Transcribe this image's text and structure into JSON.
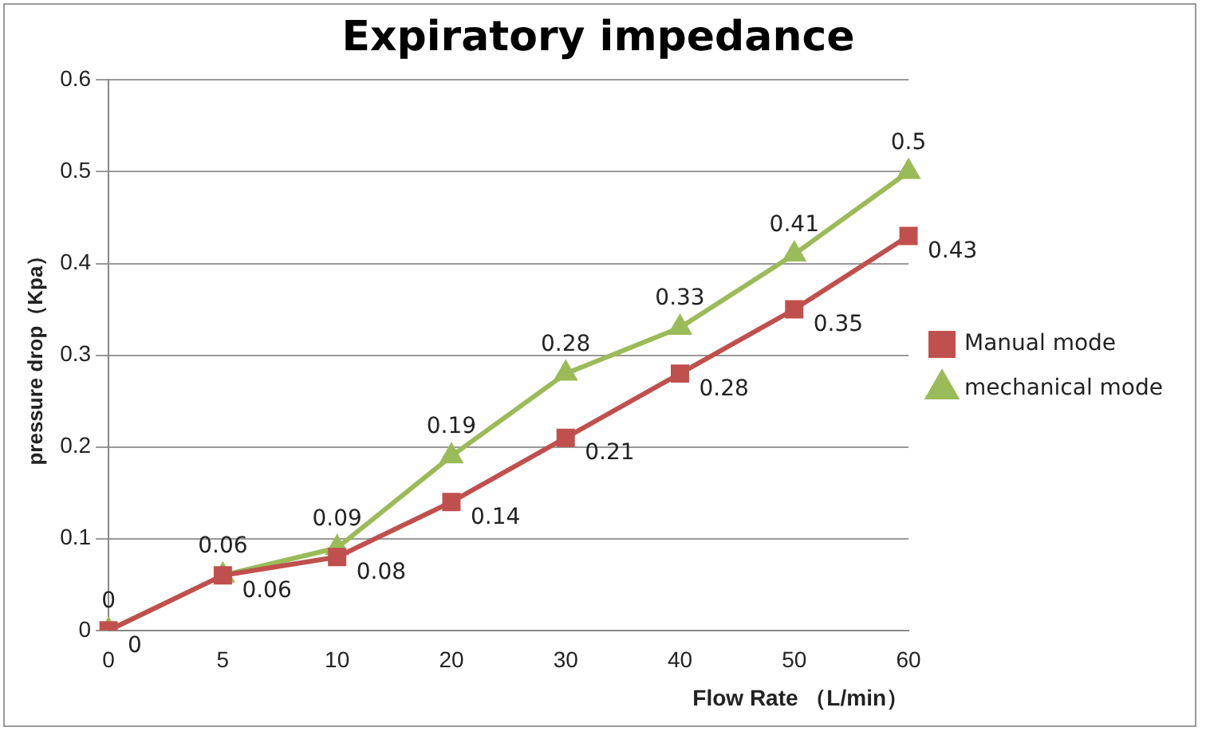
{
  "chart_data": {
    "type": "line",
    "title": "Expiratory impedance",
    "xlabel": "Flow Rate （L/min）",
    "ylabel": "pressure drop（Kpa）",
    "categories": [
      "0",
      "5",
      "10",
      "20",
      "30",
      "40",
      "50",
      "60"
    ],
    "series": [
      {
        "name": "Manual mode",
        "color": "#c0504d",
        "marker": "square",
        "values": [
          0,
          0.06,
          0.08,
          0.14,
          0.21,
          0.28,
          0.35,
          0.43
        ]
      },
      {
        "name": "mechanical mode",
        "color": "#9bbb59",
        "marker": "triangle",
        "values": [
          0,
          0.06,
          0.09,
          0.19,
          0.28,
          0.33,
          0.41,
          0.5
        ]
      }
    ],
    "ylim": [
      0,
      0.6
    ],
    "yticks": [
      0,
      0.1,
      0.2,
      0.3,
      0.4,
      0.5,
      0.6
    ],
    "grid": "y",
    "legend": "right",
    "data_labels": true,
    "line_style": "solid"
  }
}
